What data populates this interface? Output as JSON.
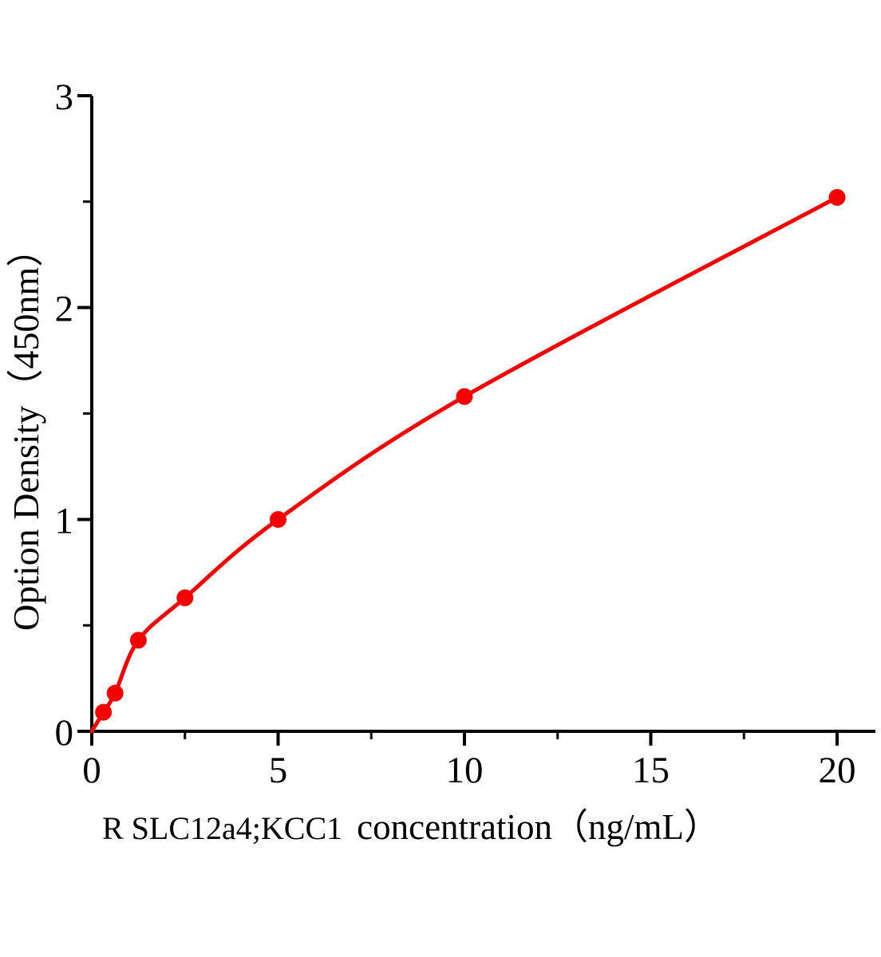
{
  "chart_data": {
    "type": "scatter",
    "title": "",
    "ylabel": "Option Density（450nm）",
    "xlabel_analyte": "R SLC12a4;KCC1",
    "xlabel_rest": "concentration（ng/mL）",
    "points": [
      {
        "x": 0.313,
        "y": 0.09
      },
      {
        "x": 0.625,
        "y": 0.18
      },
      {
        "x": 1.25,
        "y": 0.43
      },
      {
        "x": 2.5,
        "y": 0.63
      },
      {
        "x": 5,
        "y": 1.0
      },
      {
        "x": 10,
        "y": 1.58
      },
      {
        "x": 20,
        "y": 2.52
      }
    ],
    "fit_curve": true,
    "curve_start": {
      "x": 0,
      "y": 0
    },
    "xlim": [
      0,
      21
    ],
    "ylim": [
      0,
      3
    ],
    "x_major_ticks": [
      0,
      5,
      10,
      15,
      20
    ],
    "x_minor_ticks": [
      2.5,
      7.5,
      12.5,
      17.5
    ],
    "y_major_ticks": [
      0,
      1,
      2,
      3
    ],
    "y_minor_ticks": [
      0.5,
      1.5,
      2.5
    ],
    "grid": false,
    "legend": null,
    "colors": {
      "curve": "#f40000",
      "marker": "#f40000",
      "axis": "#000000",
      "text": "#000000",
      "background": "#ffffff"
    }
  }
}
